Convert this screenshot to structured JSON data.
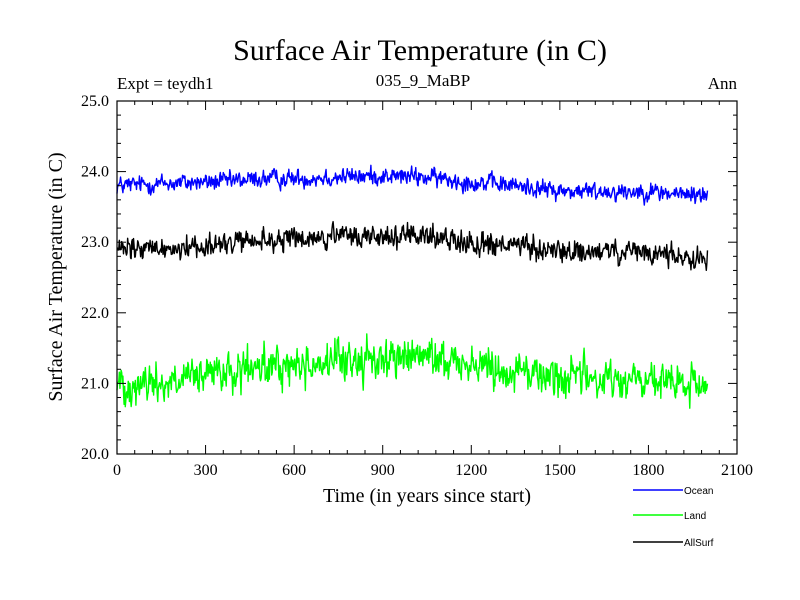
{
  "chart_data": {
    "type": "line",
    "title": "Surface Air Temperature (in C)",
    "subtitle_left": "Expt = teydh1",
    "subtitle_center": "035_9_MaBP",
    "subtitle_right": "Ann",
    "xlabel": "Time (in years since start)",
    "ylabel": "Surface Air Temperature (in C)",
    "xlim": [
      0,
      2100
    ],
    "ylim": [
      20.0,
      25.0
    ],
    "xticks": [
      0,
      300,
      600,
      900,
      1200,
      1500,
      1800,
      2100
    ],
    "xtick_labels": [
      "0",
      "300",
      "600",
      "900",
      "1200",
      "1500",
      "1800",
      "2100"
    ],
    "yticks": [
      20.0,
      21.0,
      22.0,
      23.0,
      24.0,
      25.0
    ],
    "ytick_labels": [
      "20.0",
      "21.0",
      "22.0",
      "23.0",
      "24.0",
      "25.0"
    ],
    "series": [
      {
        "name": "Ocean",
        "color": "#0000ff",
        "x": [
          0,
          100,
          200,
          300,
          400,
          500,
          600,
          700,
          800,
          900,
          1000,
          1100,
          1200,
          1300,
          1400,
          1500,
          1600,
          1700,
          1800,
          1900,
          2000
        ],
        "y": [
          23.8,
          23.82,
          23.84,
          23.85,
          23.87,
          23.9,
          23.9,
          23.92,
          23.93,
          23.94,
          23.93,
          23.9,
          23.85,
          23.82,
          23.78,
          23.72,
          23.72,
          23.72,
          23.72,
          23.68,
          23.67
        ],
        "noise": 0.1
      },
      {
        "name": "Land",
        "color": "#00ff00",
        "x": [
          0,
          100,
          200,
          300,
          400,
          500,
          600,
          700,
          800,
          900,
          1000,
          1100,
          1200,
          1300,
          1400,
          1500,
          1600,
          1700,
          1800,
          1900,
          2000
        ],
        "y": [
          21.0,
          21.0,
          21.02,
          21.1,
          21.15,
          21.22,
          21.25,
          21.3,
          21.32,
          21.35,
          21.38,
          21.35,
          21.28,
          21.22,
          21.15,
          21.1,
          21.08,
          21.05,
          21.02,
          20.98,
          20.95
        ],
        "noise": 0.22
      },
      {
        "name": "AllSurf",
        "color": "#000000",
        "x": [
          0,
          100,
          200,
          300,
          400,
          500,
          600,
          700,
          800,
          900,
          1000,
          1100,
          1200,
          1300,
          1400,
          1500,
          1600,
          1700,
          1800,
          1900,
          2000
        ],
        "y": [
          22.88,
          22.9,
          22.92,
          22.96,
          22.98,
          23.02,
          23.04,
          23.06,
          23.08,
          23.09,
          23.08,
          23.06,
          23.0,
          22.96,
          22.92,
          22.86,
          22.86,
          22.85,
          22.84,
          22.8,
          22.78
        ],
        "noise": 0.13
      }
    ],
    "legend_position": "bottom-right"
  }
}
